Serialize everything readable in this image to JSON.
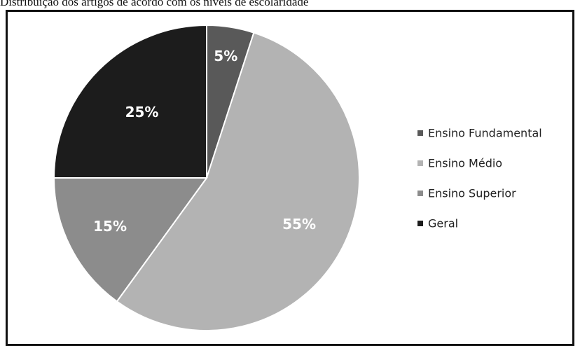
{
  "chart_data": {
    "type": "pie",
    "title": "Distribuição dos artigos de acordo com os níveis de escolaridade",
    "slices": [
      {
        "label": "Ensino Fundamental",
        "value": 5,
        "display": "5%",
        "color": "#595959"
      },
      {
        "label": "Ensino Médio",
        "value": 55,
        "display": "55%",
        "color": "#b3b3b3"
      },
      {
        "label": "Ensino Superior",
        "value": 15,
        "display": "15%",
        "color": "#8c8c8c"
      },
      {
        "label": "Geral",
        "value": 25,
        "display": "25%",
        "color": "#1c1c1c"
      }
    ],
    "legend_position": "right"
  }
}
